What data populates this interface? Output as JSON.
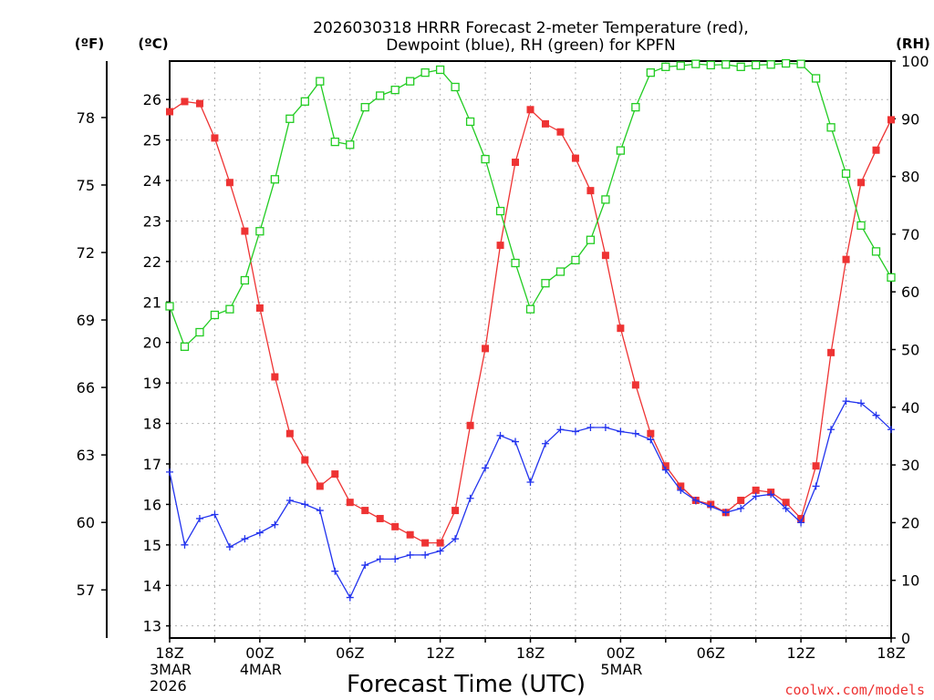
{
  "chart_data": {
    "type": "line",
    "title_line1": "2026030318 HRRR Forecast 2-meter Temperature (red),",
    "title_line2": "Dewpoint (blue), RH (green) for KPFN",
    "xlabel": "Forecast Time (UTC)",
    "credit": "coolwx.com/models",
    "unit_label_f": "(ºF)",
    "unit_label_c": "(ºC)",
    "unit_label_rh": "(RH)",
    "x_hours_range": [
      0,
      48
    ],
    "celsius_range": [
      12.7,
      26.95
    ],
    "rh_range": [
      0,
      100
    ],
    "celsius_ticks": [
      "13",
      "14",
      "15",
      "16",
      "17",
      "18",
      "19",
      "20",
      "21",
      "22",
      "23",
      "24",
      "25",
      "26"
    ],
    "fahrenheit_ticks": [
      "57",
      "60",
      "63",
      "66",
      "69",
      "72",
      "75",
      "78"
    ],
    "rh_ticks": [
      "0",
      "10",
      "20",
      "30",
      "40",
      "50",
      "60",
      "70",
      "80",
      "90",
      "100"
    ],
    "x_tick_labels": [
      {
        "hour": 0,
        "lines": [
          "18Z",
          "3MAR",
          "2026"
        ]
      },
      {
        "hour": 6,
        "lines": [
          "00Z",
          "4MAR"
        ]
      },
      {
        "hour": 12,
        "lines": [
          "06Z"
        ]
      },
      {
        "hour": 18,
        "lines": [
          "12Z"
        ]
      },
      {
        "hour": 24,
        "lines": [
          "18Z"
        ]
      },
      {
        "hour": 30,
        "lines": [
          "00Z",
          "5MAR"
        ]
      },
      {
        "hour": 36,
        "lines": [
          "06Z"
        ]
      },
      {
        "hour": 42,
        "lines": [
          "12Z"
        ]
      },
      {
        "hour": 48,
        "lines": [
          "18Z"
        ]
      }
    ],
    "series": [
      {
        "name": "2-meter Temperature",
        "unit": "C",
        "color": "#ee3333",
        "marker": "filled-square",
        "values": [
          25.7,
          25.95,
          25.9,
          25.05,
          23.95,
          22.75,
          20.85,
          19.15,
          17.75,
          17.1,
          16.45,
          16.75,
          16.05,
          15.85,
          15.65,
          15.45,
          15.25,
          15.05,
          15.05,
          15.85,
          17.95,
          19.85,
          22.4,
          24.45,
          25.75,
          25.4,
          25.2,
          24.55,
          23.75,
          22.15,
          20.35,
          18.95,
          17.75,
          16.95,
          16.45,
          16.1,
          16.0,
          15.8,
          16.1,
          16.35,
          16.3,
          16.05,
          15.65,
          16.95,
          19.75,
          22.05,
          23.95,
          24.75,
          25.5
        ]
      },
      {
        "name": "Dewpoint",
        "unit": "C",
        "color": "#2233ee",
        "marker": "plus",
        "values": [
          16.8,
          15.0,
          15.65,
          15.75,
          14.95,
          15.15,
          15.3,
          15.5,
          16.1,
          16.0,
          15.85,
          14.35,
          13.7,
          14.5,
          14.65,
          14.65,
          14.75,
          14.75,
          14.85,
          15.15,
          16.15,
          16.9,
          17.7,
          17.55,
          16.55,
          17.5,
          17.85,
          17.8,
          17.9,
          17.9,
          17.8,
          17.75,
          17.6,
          16.85,
          16.35,
          16.1,
          15.95,
          15.8,
          15.9,
          16.2,
          16.25,
          15.9,
          15.55,
          16.45,
          17.85,
          18.55,
          18.5,
          18.2,
          17.85
        ]
      },
      {
        "name": "RH",
        "unit": "%",
        "color": "#22cc22",
        "marker": "open-square",
        "values": [
          57.5,
          50.5,
          53.0,
          56.0,
          57.0,
          62.0,
          70.5,
          79.5,
          90.0,
          93.0,
          96.5,
          86.0,
          85.5,
          92.0,
          94.0,
          95.0,
          96.5,
          98.0,
          98.5,
          95.5,
          89.5,
          83.0,
          74.0,
          65.0,
          57.0,
          61.5,
          63.5,
          65.5,
          69.0,
          76.0,
          84.5,
          92.0,
          98.0,
          99.0,
          99.2,
          99.5,
          99.3,
          99.4,
          99.0,
          99.3,
          99.4,
          99.6,
          99.5,
          97.0,
          88.5,
          80.5,
          71.5,
          67.0,
          62.5
        ]
      }
    ]
  }
}
